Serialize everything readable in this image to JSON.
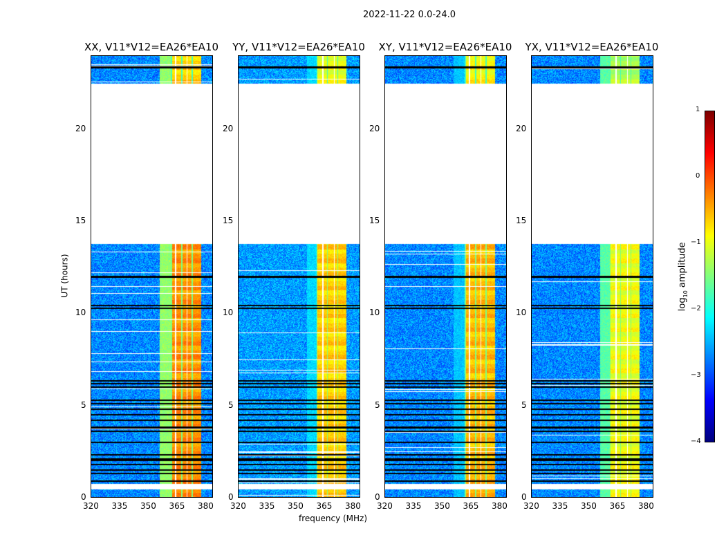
{
  "chart_data": {
    "type": "heatmap",
    "title": "2022-11-22 0.0-24.0",
    "xlabel": "frequency (MHz)",
    "ylabel": "UT (hours)",
    "xlim": [
      320,
      384
    ],
    "ylim": [
      0,
      24
    ],
    "xticks": [
      "320",
      "335",
      "350",
      "365",
      "380"
    ],
    "yticks": [
      "0",
      "5",
      "10",
      "15",
      "20"
    ],
    "colorbar": {
      "label": "log10 amplitude",
      "label_base": "log",
      "label_sub": "10",
      "label_rest": " amplitude",
      "range": [
        -4,
        1
      ],
      "ticks": [
        "1",
        "0",
        "−1",
        "−2",
        "−3",
        "−4"
      ],
      "colormap": "jet"
    },
    "no_data_hours": [
      [
        0.45,
        0.75
      ],
      [
        13.8,
        22.5
      ]
    ],
    "flagged_hours": [
      0.9,
      1.3,
      1.5,
      1.8,
      2.0,
      2.1,
      2.3,
      3.0,
      3.6,
      3.8,
      4.2,
      4.5,
      4.8,
      5.1,
      5.3,
      6.0,
      6.2,
      6.35,
      10.3,
      10.45,
      12.0,
      23.4
    ],
    "panels": [
      {
        "title": "XX, V11*V12=EA26*EA10",
        "background": -2.7,
        "band_mhz": [
          362,
          378
        ],
        "band_level": -0.2,
        "side_band_mhz": [
          356,
          362
        ],
        "side_level": -1.4
      },
      {
        "title": "YY, V11*V12=EA26*EA10",
        "background": -2.6,
        "band_mhz": [
          361,
          377
        ],
        "band_level": -0.5,
        "side_band_mhz": [
          356,
          361
        ],
        "side_level": -2.3
      },
      {
        "title": "XY, V11*V12=EA26*EA10",
        "background": -2.7,
        "band_mhz": [
          362,
          378
        ],
        "band_level": -0.4,
        "side_band_mhz": [
          356,
          362
        ],
        "side_level": -2.4
      },
      {
        "title": "YX, V11*V12=EA26*EA10",
        "background": -2.7,
        "band_mhz": [
          361,
          377
        ],
        "band_level": -0.8,
        "side_band_mhz": [
          356,
          361
        ],
        "side_level": -1.7
      }
    ]
  }
}
